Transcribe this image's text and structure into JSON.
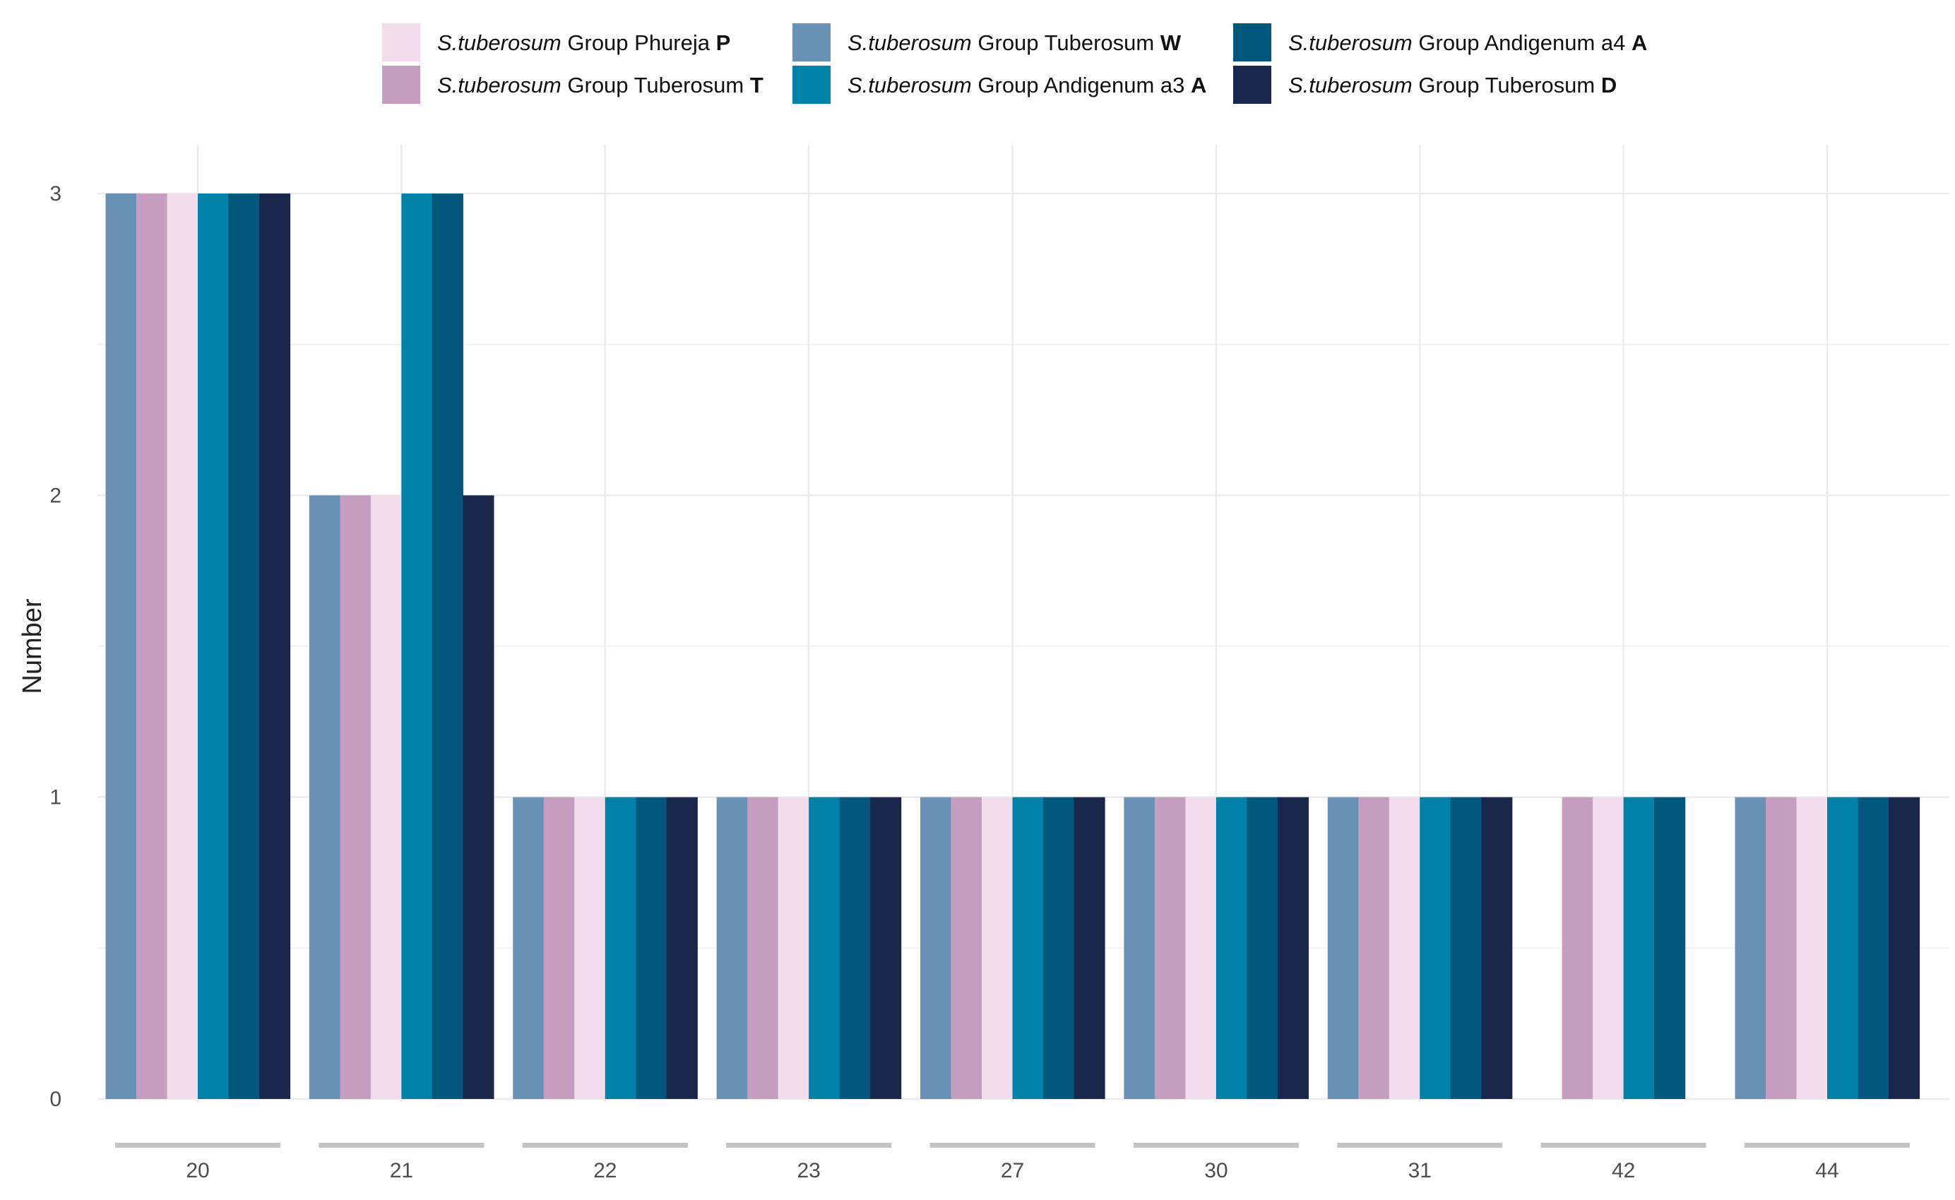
{
  "chart_data": {
    "type": "bar",
    "title": "",
    "xlabel": "",
    "ylabel": "Number",
    "ylim": [
      0,
      3
    ],
    "yticks": [
      0,
      1,
      2,
      3
    ],
    "grid": true,
    "legend_position": "top",
    "categories": [
      "20",
      "21",
      "22",
      "23",
      "27",
      "30",
      "31",
      "42",
      "44"
    ],
    "series": [
      {
        "id": "W",
        "italic": "S.tuberosum",
        "rest": " Group Tuberosum ",
        "code": "W",
        "color": "#6891b5",
        "values": [
          3,
          2,
          1,
          1,
          1,
          1,
          1,
          0,
          1
        ]
      },
      {
        "id": "T",
        "italic": "S.tuberosum",
        "rest": " Group Tuberosum ",
        "code": "T",
        "color": "#c59dbe",
        "values": [
          3,
          2,
          1,
          1,
          1,
          1,
          1,
          1,
          1
        ]
      },
      {
        "id": "P",
        "italic": "S.tuberosum",
        "rest": " Group Phureja ",
        "code": "P",
        "color": "#f3dcec",
        "values": [
          3,
          2,
          1,
          1,
          1,
          1,
          1,
          1,
          1
        ]
      },
      {
        "id": "A3",
        "italic": "S.tuberosum",
        "rest": " Group Andigenum a3 ",
        "code": "A",
        "color": "#0081a7",
        "values": [
          3,
          3,
          1,
          1,
          1,
          1,
          1,
          1,
          1
        ]
      },
      {
        "id": "A4",
        "italic": "S.tuberosum",
        "rest": " Group Andigenum a4 ",
        "code": "A",
        "color": "#02577c",
        "values": [
          3,
          3,
          1,
          1,
          1,
          1,
          1,
          1,
          1
        ]
      },
      {
        "id": "D",
        "italic": "S.tuberosum",
        "rest": " Group Tuberosum ",
        "code": "D",
        "color": "#19274b",
        "values": [
          3,
          2,
          1,
          1,
          1,
          1,
          1,
          0,
          1
        ]
      }
    ],
    "legend_order": [
      "P",
      "T",
      "W",
      "A3",
      "A4",
      "D"
    ]
  }
}
